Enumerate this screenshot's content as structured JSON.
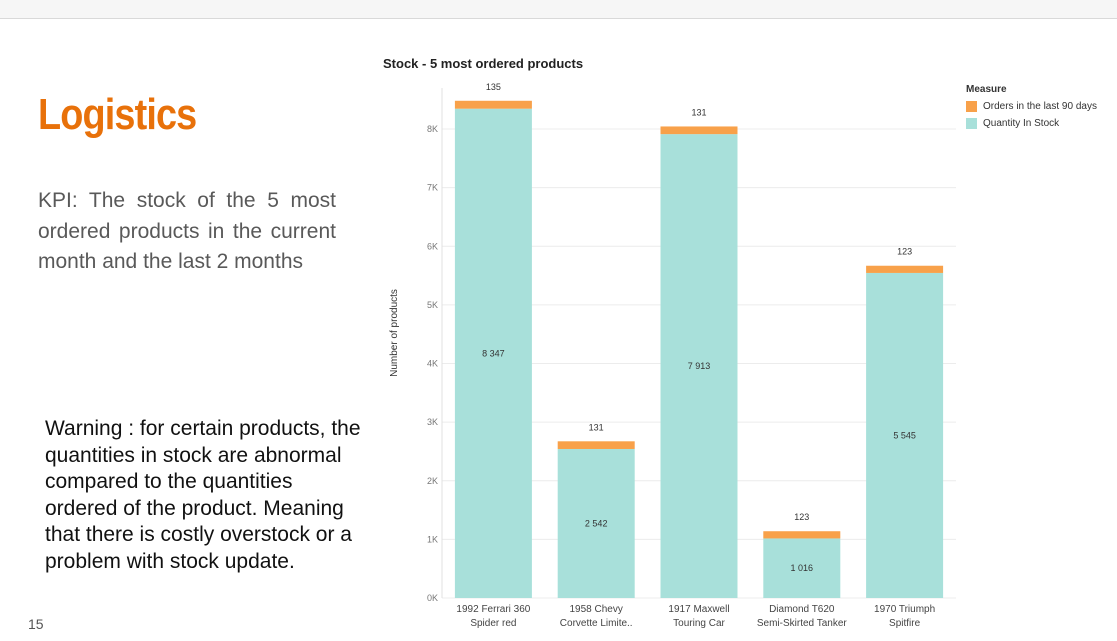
{
  "slide": {
    "title": "Logistics",
    "kpi_text": "KPI: The stock of the 5 most ordered products in the current month and the last 2 months",
    "warning_text": "Warning : for certain products, the quantities in stock  are abnormal compared to the quantities ordered of the product. Meaning that there is costly overstock or a problem with stock update.",
    "page_number": "15"
  },
  "chart_data": {
    "type": "bar",
    "stacked": true,
    "title": "Stock - 5 most ordered products",
    "ylabel": "Number of products",
    "xlabel": "",
    "ylim": [
      0,
      8700
    ],
    "yticks": [
      {
        "value": 0,
        "label": "0K"
      },
      {
        "value": 1000,
        "label": "1K"
      },
      {
        "value": 2000,
        "label": "2K"
      },
      {
        "value": 3000,
        "label": "3K"
      },
      {
        "value": 4000,
        "label": "4K"
      },
      {
        "value": 5000,
        "label": "5K"
      },
      {
        "value": 6000,
        "label": "6K"
      },
      {
        "value": 7000,
        "label": "7K"
      },
      {
        "value": 8000,
        "label": "8K"
      }
    ],
    "grid": true,
    "legend_position": "top-right",
    "legend_title": "Measure",
    "categories": [
      [
        "1992 Ferrari 360",
        "Spider red"
      ],
      [
        "1958 Chevy",
        "Corvette Limite.."
      ],
      [
        "1917 Maxwell",
        "Touring Car"
      ],
      [
        "Diamond T620",
        "Semi-Skirted Tanker"
      ],
      [
        "1970 Triumph",
        "Spitfire"
      ]
    ],
    "series": [
      {
        "name": "Quantity In Stock",
        "color": "#a8e0da",
        "values": [
          8347,
          2542,
          7913,
          1016,
          5545
        ],
        "labels": [
          "8 347",
          "2 542",
          "7 913",
          "1 016",
          "5 545"
        ]
      },
      {
        "name": "Orders in the last 90 days",
        "color": "#f8a14a",
        "values": [
          135,
          131,
          131,
          123,
          123
        ],
        "labels": [
          "135",
          "131",
          "131",
          "123",
          "123"
        ]
      }
    ]
  }
}
